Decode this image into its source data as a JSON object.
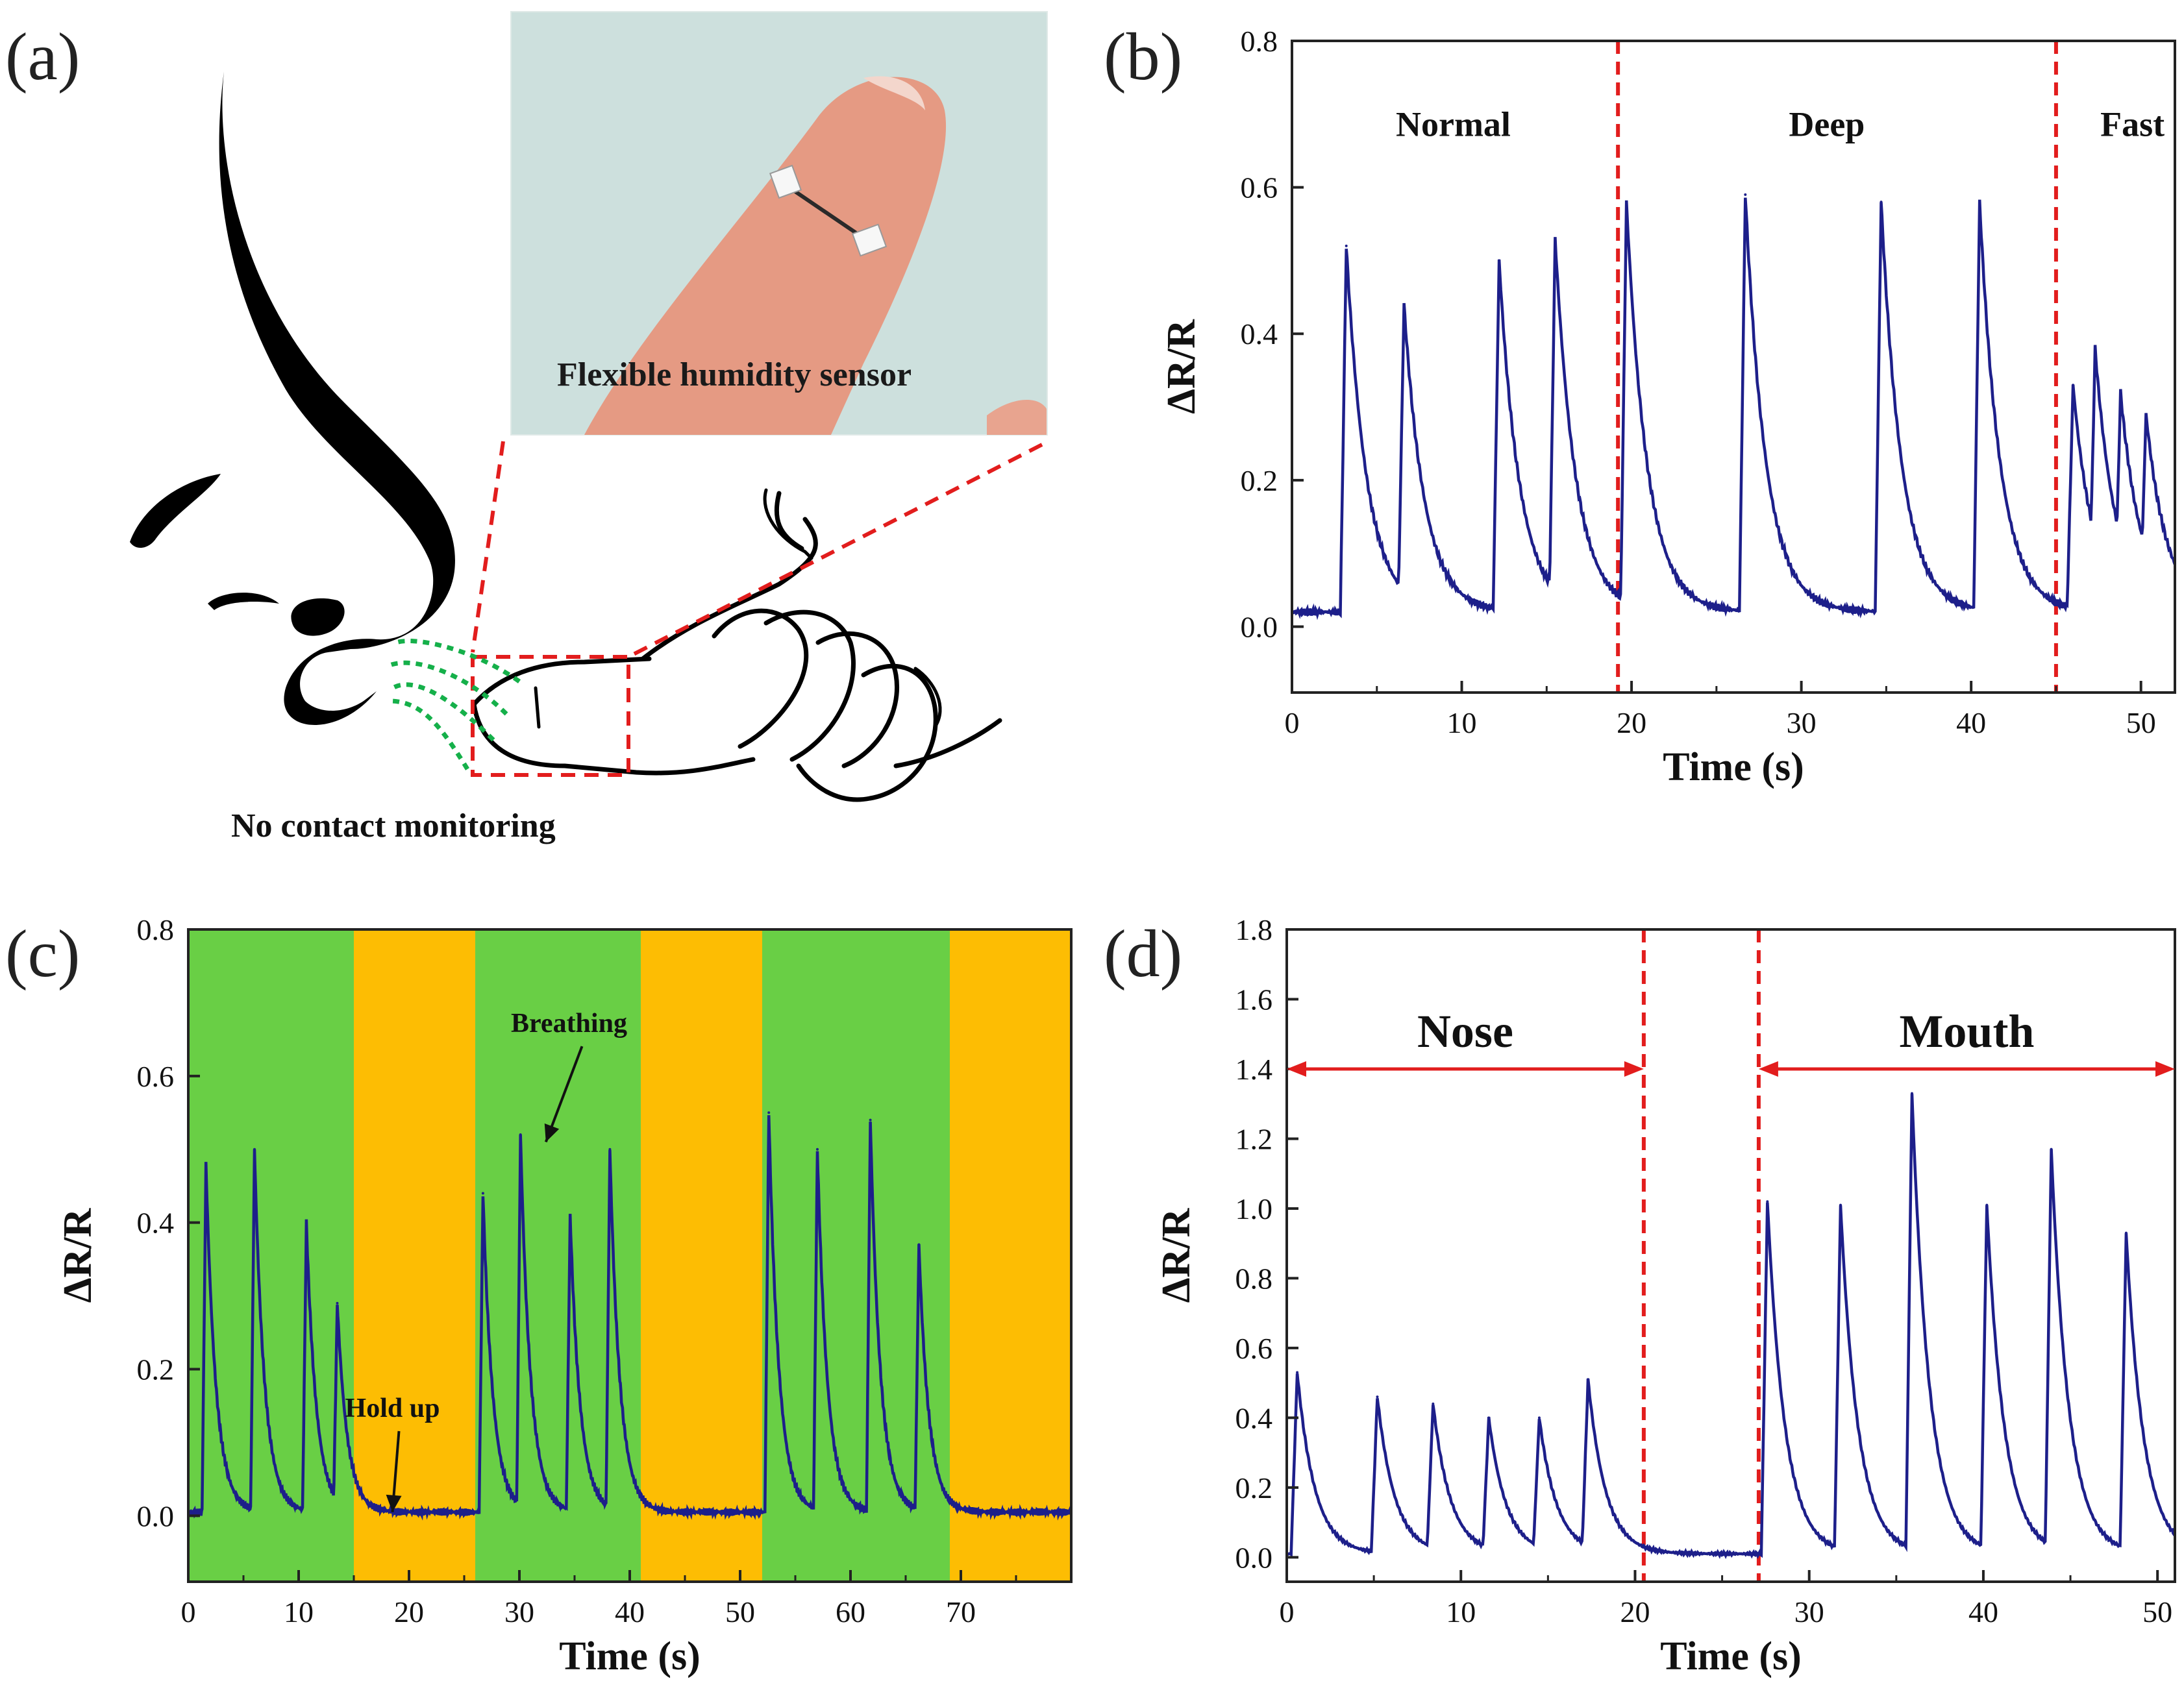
{
  "figure": {
    "panel_labels": [
      "(a)",
      "(b)",
      "(c)",
      "(d)"
    ]
  },
  "panel_a": {
    "photo_caption": "Flexible humidity sensor",
    "bottom_caption": "No contact monitoring",
    "colors": {
      "highlight": "#e21d1d",
      "airflow": "#15b04a",
      "skin": "#e59a83",
      "photo_bg": "#cde0dd"
    }
  },
  "colors": {
    "trace": "#1d1f8a",
    "divider": "#e21d1d",
    "breath_band": "#69cf45",
    "hold_band": "#fdbd03"
  },
  "chart_data": [
    {
      "id": "b",
      "type": "line",
      "title": "",
      "xlabel": "Time (s)",
      "ylabel": "ΔR/R",
      "xlim": [
        0,
        52
      ],
      "ylim": [
        -0.09,
        0.8
      ],
      "xticks": [
        0,
        10,
        20,
        30,
        40,
        50
      ],
      "yticks": [
        0.0,
        0.2,
        0.4,
        0.6,
        0.8
      ],
      "tick_labels_x": [
        "0",
        "10",
        "20",
        "30",
        "40",
        "50"
      ],
      "tick_labels_y": [
        "0.0",
        "0.2",
        "0.4",
        "0.6",
        "0.8"
      ],
      "series": [
        {
          "name": "ΔR/R",
          "baseline": 0.02,
          "peaks": [
            {
              "t": 3.2,
              "h": 0.52
            },
            {
              "t": 6.6,
              "h": 0.44
            },
            {
              "t": 12.2,
              "h": 0.5
            },
            {
              "t": 15.5,
              "h": 0.53
            },
            {
              "t": 19.7,
              "h": 0.58
            },
            {
              "t": 26.7,
              "h": 0.59
            },
            {
              "t": 34.7,
              "h": 0.58
            },
            {
              "t": 40.5,
              "h": 0.58
            },
            {
              "t": 46.0,
              "h": 0.33
            },
            {
              "t": 47.3,
              "h": 0.38
            },
            {
              "t": 48.8,
              "h": 0.32
            },
            {
              "t": 50.3,
              "h": 0.29
            }
          ]
        }
      ],
      "dividers": [
        19.2,
        45.0
      ],
      "annotations": [
        {
          "text": "Normal",
          "x": 9.5,
          "y": 0.67
        },
        {
          "text": "Deep",
          "x": 31.5,
          "y": 0.67
        },
        {
          "text": "Fast",
          "x": 49.5,
          "y": 0.67
        }
      ]
    },
    {
      "id": "c",
      "type": "line",
      "title": "",
      "xlabel": "Time (s)",
      "ylabel": "ΔR/R",
      "xlim": [
        0,
        80
      ],
      "ylim": [
        -0.09,
        0.8
      ],
      "xticks": [
        0,
        10,
        20,
        30,
        40,
        50,
        60,
        70
      ],
      "yticks": [
        0.0,
        0.2,
        0.4,
        0.6,
        0.8
      ],
      "tick_labels_x": [
        "0",
        "10",
        "20",
        "30",
        "40",
        "50",
        "60",
        "70"
      ],
      "tick_labels_y": [
        "0.0",
        "0.2",
        "0.4",
        "0.6",
        "0.8"
      ],
      "bands": [
        {
          "from": 0,
          "to": 15,
          "state": "breathing"
        },
        {
          "from": 15,
          "to": 26,
          "state": "hold"
        },
        {
          "from": 26,
          "to": 41,
          "state": "breathing"
        },
        {
          "from": 41,
          "to": 52,
          "state": "hold"
        },
        {
          "from": 52,
          "to": 69,
          "state": "breathing"
        },
        {
          "from": 69,
          "to": 80,
          "state": "hold"
        }
      ],
      "series": [
        {
          "name": "ΔR/R",
          "baseline": 0.005,
          "peaks": [
            {
              "t": 1.6,
              "h": 0.48
            },
            {
              "t": 6.0,
              "h": 0.5
            },
            {
              "t": 10.7,
              "h": 0.4
            },
            {
              "t": 13.5,
              "h": 0.29
            },
            {
              "t": 26.7,
              "h": 0.44
            },
            {
              "t": 30.1,
              "h": 0.52
            },
            {
              "t": 34.6,
              "h": 0.41
            },
            {
              "t": 38.2,
              "h": 0.5
            },
            {
              "t": 52.6,
              "h": 0.55
            },
            {
              "t": 57.0,
              "h": 0.5
            },
            {
              "t": 61.8,
              "h": 0.54
            },
            {
              "t": 66.2,
              "h": 0.37
            }
          ]
        }
      ],
      "annotations": [
        {
          "text": "Breathing",
          "x": 34.5,
          "y": 0.66,
          "arrow_to": [
            32.4,
            0.51
          ]
        },
        {
          "text": "Hold up",
          "x": 18.5,
          "y": 0.135,
          "arrow_to": [
            18.5,
            0.005
          ]
        }
      ]
    },
    {
      "id": "d",
      "type": "line",
      "title": "",
      "xlabel": "Time (s)",
      "ylabel": "ΔR/R",
      "xlim": [
        0,
        51
      ],
      "ylim": [
        -0.07,
        1.8
      ],
      "xticks": [
        0,
        10,
        20,
        30,
        40,
        50
      ],
      "yticks": [
        0.0,
        0.2,
        0.4,
        0.6,
        0.8,
        1.0,
        1.2,
        1.4,
        1.6,
        1.8
      ],
      "tick_labels_x": [
        "0",
        "10",
        "20",
        "30",
        "40",
        "50"
      ],
      "tick_labels_y": [
        "0.0",
        "0.2",
        "0.4",
        "0.6",
        "0.8",
        "1.0",
        "1.2",
        "1.4",
        "1.6",
        "1.8"
      ],
      "series": [
        {
          "name": "ΔR/R",
          "baseline": 0.01,
          "peaks": [
            {
              "t": 0.6,
              "h": 0.53
            },
            {
              "t": 5.2,
              "h": 0.46
            },
            {
              "t": 8.4,
              "h": 0.44
            },
            {
              "t": 11.6,
              "h": 0.4
            },
            {
              "t": 14.5,
              "h": 0.4
            },
            {
              "t": 17.3,
              "h": 0.51
            },
            {
              "t": 27.6,
              "h": 1.02
            },
            {
              "t": 31.8,
              "h": 1.01
            },
            {
              "t": 35.9,
              "h": 1.33
            },
            {
              "t": 40.2,
              "h": 1.01
            },
            {
              "t": 43.9,
              "h": 1.17
            },
            {
              "t": 48.2,
              "h": 0.93
            }
          ]
        }
      ],
      "dividers": [
        20.5,
        27.1
      ],
      "ranges": [
        {
          "text": "Nose",
          "from": 0,
          "to": 20.5,
          "y": 1.4,
          "label_y": 1.5
        },
        {
          "text": "Mouth",
          "from": 27.1,
          "to": 51,
          "y": 1.4,
          "label_y": 1.5
        }
      ]
    }
  ]
}
